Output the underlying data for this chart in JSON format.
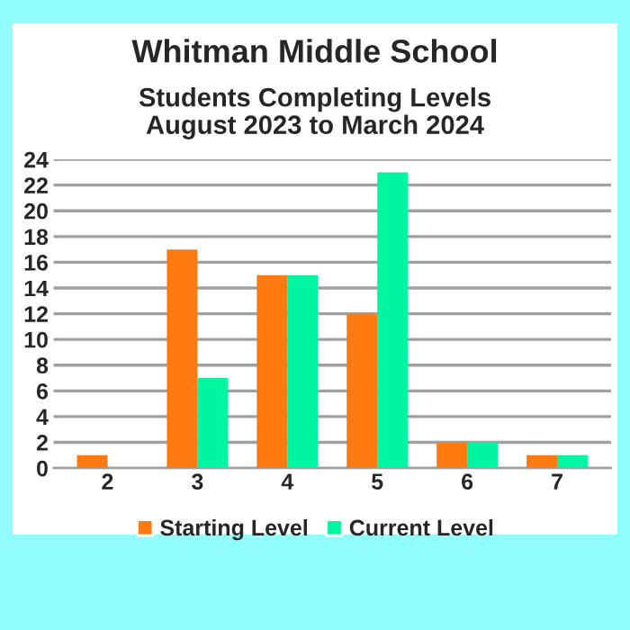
{
  "chart_data": {
    "type": "bar",
    "title": "Whitman Middle School",
    "subtitle": "Students Completing Levels\nAugust 2023 to March 2024",
    "categories": [
      "2",
      "3",
      "4",
      "5",
      "6",
      "7"
    ],
    "series": [
      {
        "name": "Starting Level",
        "color": "#ff7a10",
        "values": [
          1,
          17,
          15,
          12,
          2,
          1
        ]
      },
      {
        "name": "Current Level",
        "color": "#00f5a0",
        "values": [
          0,
          7,
          15,
          23,
          2,
          1
        ]
      }
    ],
    "ylim": [
      0,
      24
    ],
    "yticks": [
      0,
      2,
      4,
      6,
      8,
      10,
      12,
      14,
      16,
      18,
      20,
      22,
      24
    ],
    "grid": "y",
    "legend": "bottom"
  }
}
